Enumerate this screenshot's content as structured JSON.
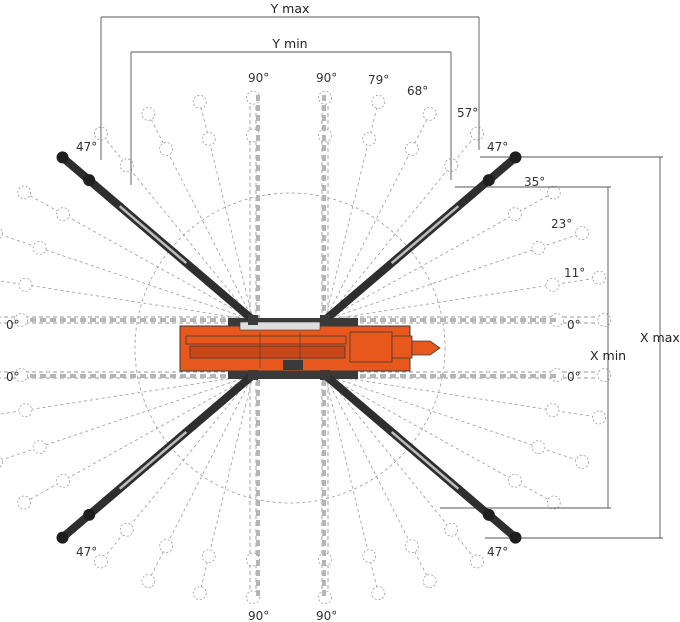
{
  "dimensions": {
    "y_max": "Y max",
    "y_min": "Y min",
    "x_max": "X max",
    "x_min": "X min"
  },
  "angle_labels": {
    "top_left_90": "90°",
    "top_right_90": "90°",
    "top_79": "79°",
    "top_68": "68°",
    "top_57": "57°",
    "top_left_47": "47°",
    "top_right_47": "47°",
    "right_35": "35°",
    "right_23": "23°",
    "right_11": "11°",
    "left_0_top": "0°",
    "right_0_top": "0°",
    "left_0_bottom": "0°",
    "right_0_bottom": "0°",
    "bottom_left_47": "47°",
    "bottom_right_47": "47°",
    "bottom_left_90": "90°",
    "bottom_right_90": "90°"
  },
  "colors": {
    "machine_orange": "#e8581c",
    "outrigger_dark": "#2e2e2e",
    "guide_line": "#9a9a9a",
    "dimension_line": "#555555"
  },
  "icons": {
    "pad": "outrigger-pad-icon",
    "machine": "crawler-crane-icon"
  }
}
